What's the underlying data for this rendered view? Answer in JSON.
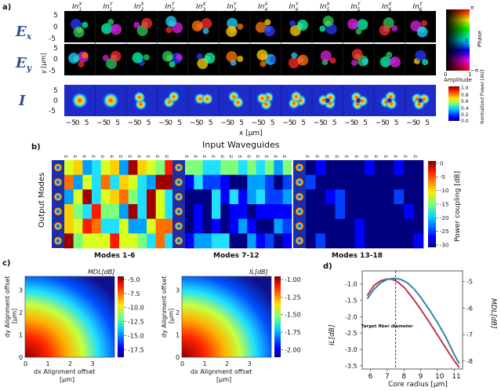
{
  "panels": {
    "a": "a)",
    "b": "b)",
    "c": "c)",
    "d": "d)"
  },
  "panel_a": {
    "row_labels": [
      "E",
      "E",
      "I"
    ],
    "row_subscripts": [
      "x",
      "y",
      ""
    ],
    "column_headers": [
      "In",
      "In",
      "In",
      "In",
      "In",
      "In",
      "In",
      "In",
      "In",
      "In",
      "In",
      "In"
    ],
    "column_supers": [
      "X",
      "Y",
      "X",
      "Y",
      "X",
      "Y",
      "X",
      "Y",
      "X",
      "Y",
      "X",
      "Y"
    ],
    "column_subs": [
      "1",
      "1",
      "2",
      "2",
      "3",
      "3",
      "4",
      "4",
      "5",
      "5",
      "6",
      "6"
    ],
    "y_ticks_field": [
      "5",
      "0",
      "-5"
    ],
    "y_axis_field": "y [μm]",
    "x_ticks": [
      "−5",
      "0",
      "5"
    ],
    "x_axis": "x [μm]",
    "phase_colorbar": {
      "label": "Phase",
      "top": "π",
      "mid": "0",
      "bottom": "−π"
    },
    "amplitude_label": "Amplitude",
    "amplitude_ticks": [
      "0",
      "1"
    ],
    "intensity_colorbar": {
      "label": "Normalized Power [AU]",
      "ticks": [
        "1.0",
        "0.8",
        "0.6",
        "0.4",
        "0.2",
        "0.0"
      ]
    }
  },
  "panel_b": {
    "title": "Input Waveguides",
    "y_axis": "Output Modes",
    "group_labels": [
      "Modes 1-6",
      "Modes 7-12",
      "Modes 13-18"
    ],
    "colorbar": {
      "label": "Power coupling [dB]",
      "ticks": [
        "0",
        "-5",
        "-10",
        "-15",
        "-20",
        "-25",
        "-30"
      ]
    },
    "column_header_prefix": "In"
  },
  "panel_c": {
    "left_title": "MDL[dB]",
    "right_title": "IL[dB]",
    "xlabel": "dx Alignment offset [μm]",
    "ylabel": "dy Alignment offset [μm]",
    "left_colorbar_ticks": [
      "-5.0",
      "-7.5",
      "-10.0",
      "-12.5",
      "-15.0",
      "-17.5"
    ],
    "right_colorbar_ticks": [
      "-1.00",
      "-1.25",
      "-1.50",
      "-1.75",
      "-2.00"
    ],
    "x_ticks": [
      "0",
      "1",
      "2",
      "3"
    ],
    "y_ticks": [
      "0",
      "1",
      "2",
      "3"
    ]
  },
  "chart_data": [
    {
      "type": "line",
      "title": "",
      "xlabel": "Core radius [μm]",
      "ylabel": "IL[dB]",
      "ylabel_right": "MDL[dB]",
      "xlim": [
        5.5,
        11.5
      ],
      "ylim": [
        -3.6,
        -0.6
      ],
      "ylim_right": [
        -8.3,
        -4.6
      ],
      "x_ticks": [
        6,
        7,
        8,
        9,
        10,
        11
      ],
      "y_ticks": [
        -1.0,
        -1.5,
        -2.0,
        -2.5,
        -3.0,
        -3.5
      ],
      "y_ticks_right": [
        -5,
        -6,
        -7,
        -8
      ],
      "annotation": "Target fiber diameter",
      "annotation_x": 7.5,
      "series": [
        {
          "name": "IL",
          "axis": "left",
          "color": "#c0354a",
          "x": [
            5.8,
            6.2,
            6.6,
            7.0,
            7.3,
            7.6,
            8.0,
            8.5,
            9.0,
            9.5,
            10.0,
            10.5,
            11.0,
            11.3
          ],
          "values": [
            -1.35,
            -1.05,
            -0.9,
            -0.85,
            -0.86,
            -0.93,
            -1.1,
            -1.42,
            -1.78,
            -2.16,
            -2.56,
            -2.96,
            -3.35,
            -3.55
          ]
        },
        {
          "name": "MDL",
          "axis": "right",
          "color": "#2f86a8",
          "x": [
            5.8,
            6.2,
            6.6,
            7.0,
            7.4,
            7.8,
            8.2,
            8.6,
            9.0,
            9.5,
            10.0,
            10.5,
            11.0,
            11.3
          ],
          "values": [
            -5.65,
            -5.3,
            -5.05,
            -4.92,
            -4.88,
            -4.92,
            -5.05,
            -5.28,
            -5.6,
            -6.05,
            -6.55,
            -7.1,
            -7.75,
            -8.1
          ]
        }
      ]
    }
  ]
}
